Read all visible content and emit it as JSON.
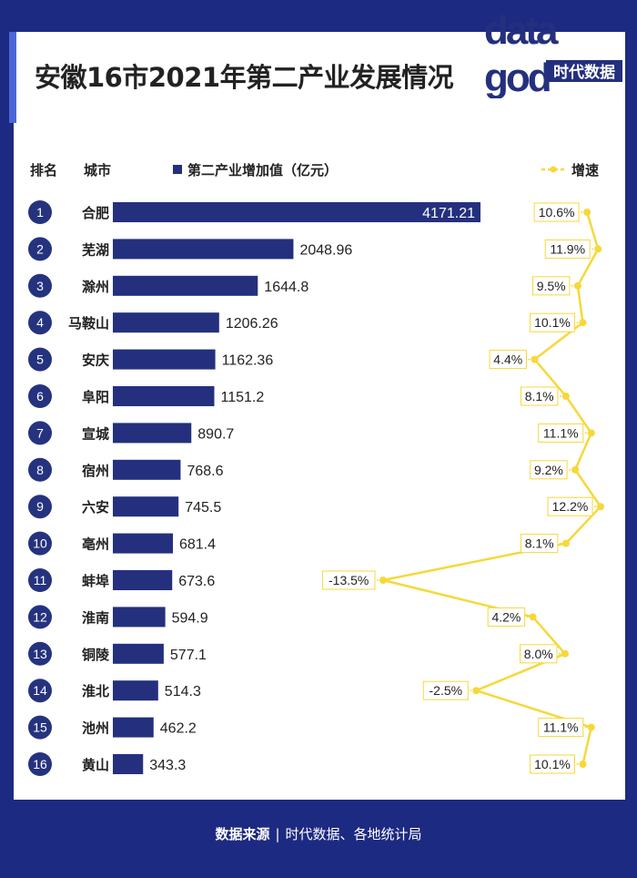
{
  "title": "安徽16市2021年第二产业发展情况",
  "logo": {
    "line1": "data",
    "line2": "god",
    "tag": "时代数据"
  },
  "headers": {
    "rank": "排名",
    "city": "城市",
    "bar_legend": "第二产业增加值（亿元）",
    "line_legend": "增速"
  },
  "footer": {
    "label": "数据来源",
    "separator": "|",
    "text": "时代数据、各地统计局"
  },
  "colors": {
    "bar": "#24307e",
    "badge": "#25337f",
    "line": "#f6d83a",
    "background": "#1d2a82"
  },
  "chart_data": {
    "type": "bar",
    "title": "安徽16市2021年第二产业发展情况",
    "categories": [
      "合肥",
      "芜湖",
      "滁州",
      "马鞍山",
      "安庆",
      "阜阳",
      "宣城",
      "宿州",
      "六安",
      "亳州",
      "蚌埠",
      "淮南",
      "铜陵",
      "淮北",
      "池州",
      "黄山"
    ],
    "ranks": [
      "1",
      "2",
      "3",
      "4",
      "5",
      "6",
      "7",
      "8",
      "9",
      "10",
      "11",
      "12",
      "13",
      "14",
      "15",
      "16"
    ],
    "series": [
      {
        "name": "第二产业增加值（亿元）",
        "type": "bar",
        "values": [
          4171.21,
          2048.96,
          1644.8,
          1206.26,
          1162.36,
          1151.2,
          890.7,
          768.6,
          745.5,
          681.4,
          673.6,
          594.9,
          577.1,
          514.3,
          462.2,
          343.3
        ],
        "labels": [
          "4171.21",
          "2048.96",
          "1644.8",
          "1206.26",
          "1162.36",
          "1151.2",
          "890.7",
          "768.6",
          "745.5",
          "681.4",
          "673.6",
          "594.9",
          "577.1",
          "514.3",
          "462.2",
          "343.3"
        ]
      },
      {
        "name": "增速",
        "type": "line",
        "values": [
          10.6,
          11.9,
          9.5,
          10.1,
          4.4,
          8.1,
          11.1,
          9.2,
          12.2,
          8.1,
          -13.5,
          4.2,
          8.0,
          -2.5,
          11.1,
          10.1
        ],
        "labels": [
          "10.6%",
          "11.9%",
          "9.5%",
          "10.1%",
          "4.4%",
          "8.1%",
          "11.1%",
          "9.2%",
          "12.2%",
          "8.1%",
          "-13.5%",
          "4.2%",
          "8.0%",
          "-2.5%",
          "11.1%",
          "10.1%"
        ],
        "unit": "%"
      }
    ],
    "xlim_bar": [
      0,
      4171.21
    ],
    "xlim_growth": [
      -13.5,
      12.2
    ]
  }
}
